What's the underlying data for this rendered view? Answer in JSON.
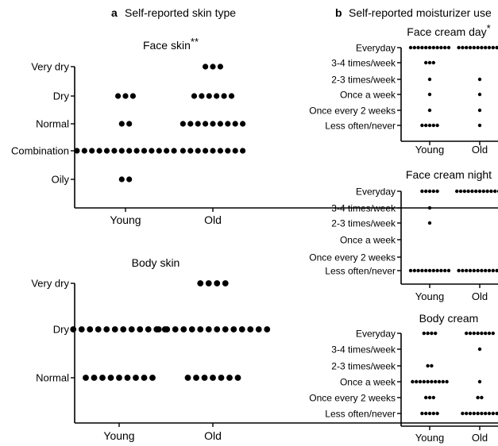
{
  "panels": {
    "a": {
      "letter": "a",
      "title": "Self-reported skin type"
    },
    "b": {
      "letter": "b",
      "title": "Self-reported moisturizer use"
    }
  },
  "colors": {
    "dot": "#000000",
    "axis": "#000000",
    "background": "#ffffff"
  },
  "chart_data": [
    {
      "type": "scatter",
      "title": "Face skin",
      "significance": "**",
      "categories": [
        "Young",
        "Old"
      ],
      "y_levels": [
        "Oily",
        "Combination",
        "Normal",
        "Dry",
        "Very dry"
      ],
      "counts": {
        "Young": {
          "Very dry": 0,
          "Dry": 3,
          "Normal": 2,
          "Combination": 14,
          "Oily": 2
        },
        "Old": {
          "Very dry": 3,
          "Dry": 6,
          "Normal": 9,
          "Combination": 9,
          "Oily": 0
        }
      }
    },
    {
      "type": "scatter",
      "title": "Body skin",
      "significance": "",
      "categories": [
        "Young",
        "Old"
      ],
      "y_levels": [
        "Normal",
        "Dry",
        "Very dry"
      ],
      "counts": {
        "Young": {
          "Very dry": 0,
          "Dry": 12,
          "Normal": 9
        },
        "Old": {
          "Very dry": 4,
          "Dry": 14,
          "Normal": 7
        }
      }
    },
    {
      "type": "scatter",
      "title": "Face cream day",
      "significance": "*",
      "categories": [
        "Young",
        "Old"
      ],
      "y_levels": [
        "Less often/never",
        "Once every 2 weeks",
        "Once a week",
        "2-3 times/week",
        "3-4 times/week",
        "Everyday"
      ],
      "counts": {
        "Young": {
          "Everyday": 11,
          "3-4 times/week": 3,
          "2-3 times/week": 1,
          "Once a week": 1,
          "Once every 2 weeks": 1,
          "Less often/never": 5
        },
        "Old": {
          "Everyday": 12,
          "3-4 times/week": 0,
          "2-3 times/week": 1,
          "Once a week": 1,
          "Once every 2 weeks": 1,
          "Less often/never": 1
        }
      }
    },
    {
      "type": "scatter",
      "title": "Face cream night",
      "significance": "",
      "categories": [
        "Young",
        "Old"
      ],
      "y_levels": [
        "Less often/never",
        "Once every 2 weeks",
        "Once a week",
        "2-3 times/week",
        "3-4 times/week",
        "Everyday"
      ],
      "counts": {
        "Young": {
          "Everyday": 5,
          "3-4 times/week": 1,
          "2-3 times/week": 1,
          "Once a week": 0,
          "Once every 2 weeks": 0,
          "Less often/never": 11
        },
        "Old": {
          "Everyday": 13,
          "3-4 times/week": 0,
          "2-3 times/week": 0,
          "Once a week": 0,
          "Once every 2 weeks": 0,
          "Less often/never": 12
        }
      }
    },
    {
      "type": "scatter",
      "title": "Body cream",
      "significance": "",
      "categories": [
        "Young",
        "Old"
      ],
      "y_levels": [
        "Less often/never",
        "Once every 2 weeks",
        "Once a week",
        "2-3 times/week",
        "3-4 times/week",
        "Everyday"
      ],
      "counts": {
        "Young": {
          "Everyday": 4,
          "3-4 times/week": 0,
          "2-3 times/week": 2,
          "Once a week": 10,
          "Once every 2 weeks": 3,
          "Less often/never": 5
        },
        "Old": {
          "Everyday": 8,
          "3-4 times/week": 1,
          "2-3 times/week": 0,
          "Once a week": 1,
          "Once every 2 weeks": 2,
          "Less often/never": 10
        }
      }
    }
  ]
}
